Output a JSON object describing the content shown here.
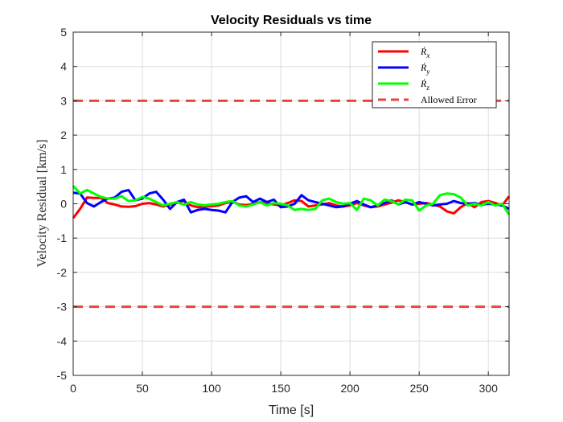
{
  "chart_data": {
    "type": "line",
    "title": "Velocity Residuals vs time",
    "xlabel": "Time [s]",
    "ylabel": "Velocity Residual [km/s]",
    "xlim": [
      0,
      315
    ],
    "ylim": [
      -5,
      5
    ],
    "xticks": [
      "0",
      "50",
      "100",
      "150",
      "200",
      "250",
      "300"
    ],
    "yticks": [
      "5",
      "4",
      "3",
      "2",
      "1",
      "0",
      "-1",
      "-2",
      "-3",
      "-4",
      "-5"
    ],
    "grid": true,
    "legend_position": "top-right",
    "series": [
      {
        "name": "Ṙx",
        "name_base": "Ṙ",
        "name_sub": "x",
        "color": "#ff0000",
        "style": "solid",
        "x": [
          0,
          5,
          10,
          15,
          20,
          25,
          30,
          35,
          40,
          45,
          50,
          55,
          60,
          65,
          70,
          75,
          80,
          85,
          90,
          95,
          100,
          105,
          110,
          115,
          120,
          125,
          130,
          135,
          140,
          145,
          150,
          155,
          160,
          165,
          170,
          175,
          180,
          185,
          190,
          195,
          200,
          205,
          210,
          215,
          220,
          225,
          230,
          235,
          240,
          245,
          250,
          255,
          260,
          265,
          270,
          275,
          280,
          285,
          290,
          295,
          300,
          305,
          310,
          315
        ],
        "y": [
          -0.42,
          -0.15,
          0.18,
          0.17,
          0.17,
          0.02,
          -0.02,
          -0.08,
          -0.09,
          -0.07,
          0.0,
          0.02,
          -0.02,
          -0.08,
          -0.02,
          0.03,
          0.08,
          -0.05,
          -0.1,
          -0.09,
          -0.07,
          -0.05,
          0.02,
          0.06,
          -0.02,
          -0.04,
          0.0,
          0.05,
          0.02,
          -0.02,
          -0.05,
          0.02,
          0.1,
          0.08,
          -0.08,
          -0.05,
          -0.02,
          0.02,
          -0.05,
          -0.08,
          -0.05,
          0.02,
          -0.05,
          -0.1,
          -0.08,
          -0.02,
          0.03,
          0.1,
          0.05,
          -0.02,
          0.0,
          0.02,
          -0.02,
          -0.08,
          -0.22,
          -0.28,
          -0.1,
          0.02,
          -0.1,
          0.05,
          0.08,
          0.02,
          -0.05,
          0.22
        ]
      },
      {
        "name": "Ṙy",
        "name_base": "Ṙ",
        "name_sub": "y",
        "color": "#0000ff",
        "style": "solid",
        "x": [
          0,
          5,
          10,
          15,
          20,
          25,
          30,
          35,
          40,
          45,
          50,
          55,
          60,
          65,
          70,
          75,
          80,
          85,
          90,
          95,
          100,
          105,
          110,
          115,
          120,
          125,
          130,
          135,
          140,
          145,
          150,
          155,
          160,
          165,
          170,
          175,
          180,
          185,
          190,
          195,
          200,
          205,
          210,
          215,
          220,
          225,
          230,
          235,
          240,
          245,
          250,
          255,
          260,
          265,
          270,
          275,
          280,
          285,
          290,
          295,
          300,
          305,
          310,
          315
        ],
        "y": [
          0.32,
          0.3,
          0.02,
          -0.08,
          0.05,
          0.15,
          0.18,
          0.35,
          0.4,
          0.1,
          0.15,
          0.3,
          0.35,
          0.12,
          -0.15,
          0.05,
          0.12,
          -0.25,
          -0.18,
          -0.15,
          -0.18,
          -0.2,
          -0.25,
          0.05,
          0.18,
          0.22,
          0.05,
          0.15,
          0.05,
          0.12,
          -0.1,
          -0.08,
          0.0,
          0.25,
          0.1,
          0.05,
          0.0,
          -0.05,
          -0.1,
          -0.08,
          0.0,
          0.08,
          -0.02,
          -0.1,
          -0.05,
          0.02,
          0.1,
          -0.02,
          0.05,
          -0.02,
          0.05,
          0.0,
          -0.05,
          -0.02,
          0.0,
          0.08,
          0.02,
          0.0,
          0.02,
          -0.03,
          0.0,
          -0.02,
          -0.05,
          -0.15
        ]
      },
      {
        "name": "Ṙz",
        "name_base": "Ṙ",
        "name_sub": "z",
        "color": "#00ff00",
        "style": "solid",
        "x": [
          0,
          5,
          10,
          15,
          20,
          25,
          30,
          35,
          40,
          45,
          50,
          55,
          60,
          65,
          70,
          75,
          80,
          85,
          90,
          95,
          100,
          105,
          110,
          115,
          120,
          125,
          130,
          135,
          140,
          145,
          150,
          155,
          160,
          165,
          170,
          175,
          180,
          185,
          190,
          195,
          200,
          205,
          210,
          215,
          220,
          225,
          230,
          235,
          240,
          245,
          250,
          255,
          260,
          265,
          270,
          275,
          280,
          285,
          290,
          295,
          300,
          305,
          310,
          315
        ],
        "y": [
          0.52,
          0.3,
          0.4,
          0.3,
          0.2,
          0.15,
          0.15,
          0.22,
          0.08,
          0.1,
          0.2,
          0.15,
          0.05,
          -0.05,
          0.0,
          0.05,
          -0.03,
          0.05,
          -0.02,
          -0.05,
          -0.02,
          0.0,
          0.05,
          0.08,
          -0.05,
          -0.08,
          -0.02,
          0.05,
          -0.05,
          0.02,
          0.0,
          -0.05,
          -0.18,
          -0.15,
          -0.18,
          -0.15,
          0.1,
          0.15,
          0.05,
          0.0,
          0.02,
          -0.18,
          0.15,
          0.1,
          -0.05,
          0.12,
          0.08,
          -0.02,
          0.12,
          0.1,
          -0.2,
          -0.05,
          0.0,
          0.25,
          0.3,
          0.28,
          0.18,
          -0.05,
          0.0,
          -0.05,
          0.05,
          -0.05,
          0.0,
          -0.32
        ]
      },
      {
        "name": "Allowed Error",
        "color": "#e8453c",
        "style": "dashed",
        "hlines": [
          3,
          -3
        ]
      }
    ]
  }
}
